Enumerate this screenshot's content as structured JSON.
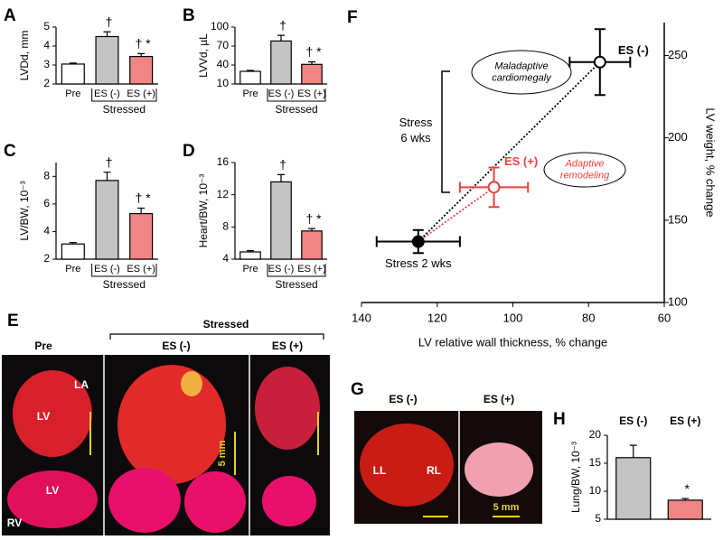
{
  "chart_data": [
    {
      "type": "bar",
      "panel": "A",
      "ylabel": "LVDd, mm",
      "categories": [
        "Pre",
        "ES (-)",
        "ES (+)"
      ],
      "values": [
        3.05,
        4.5,
        3.45
      ],
      "errors": [
        0.05,
        0.25,
        0.15
      ],
      "colors": [
        "#ffffff",
        "#c4c4c4",
        "#f08585"
      ],
      "annotations": [
        null,
        "†",
        "† *"
      ],
      "group_label": "Stressed",
      "ylim": [
        2,
        5
      ],
      "yticks": [
        2,
        3,
        4,
        5
      ]
    },
    {
      "type": "bar",
      "panel": "B",
      "ylabel": "LVVd, µL",
      "categories": [
        "Pre",
        "ES (-)",
        "ES (+)"
      ],
      "values": [
        30,
        78,
        41
      ],
      "errors": [
        1.5,
        9,
        4
      ],
      "colors": [
        "#ffffff",
        "#c4c4c4",
        "#f08585"
      ],
      "annotations": [
        null,
        "†",
        "† *"
      ],
      "group_label": "Stressed",
      "ylim": [
        10,
        100
      ],
      "yticks": [
        10,
        40,
        70,
        100
      ]
    },
    {
      "type": "bar",
      "panel": "C",
      "ylabel": "LV/BW, 10⁻³",
      "categories": [
        "Pre",
        "ES (-)",
        "ES (+)"
      ],
      "values": [
        3.1,
        7.7,
        5.3
      ],
      "errors": [
        0.1,
        0.6,
        0.4
      ],
      "colors": [
        "#ffffff",
        "#c4c4c4",
        "#f08585"
      ],
      "annotations": [
        null,
        "†",
        "† *"
      ],
      "group_label": "Stressed",
      "ylim": [
        2,
        9
      ],
      "yticks": [
        2,
        4,
        6,
        8
      ]
    },
    {
      "type": "bar",
      "panel": "D",
      "ylabel": "Heart/BW, 10⁻³",
      "categories": [
        "Pre",
        "ES (-)",
        "ES (+)"
      ],
      "values": [
        4.9,
        13.6,
        7.5
      ],
      "errors": [
        0.15,
        0.9,
        0.3
      ],
      "colors": [
        "#ffffff",
        "#c4c4c4",
        "#f08585"
      ],
      "annotations": [
        null,
        "†",
        "† *"
      ],
      "group_label": "Stressed",
      "ylim": [
        4,
        16
      ],
      "yticks": [
        4,
        8,
        12,
        16
      ]
    },
    {
      "type": "scatter",
      "panel": "F",
      "xlabel": "LV relative wall thickness, % change",
      "ylabel": "LV weight, % change",
      "series": [
        {
          "name": "Stress 2 wks",
          "color": "#000000",
          "marker": "filled",
          "x": [
            125
          ],
          "y": [
            137
          ],
          "xerr": [
            11
          ],
          "yerr": [
            7
          ]
        },
        {
          "name": "ES (+)",
          "color": "#e8423f",
          "marker": "open",
          "x": [
            105
          ],
          "y": [
            170
          ],
          "xerr": [
            9
          ],
          "yerr": [
            12
          ]
        },
        {
          "name": "ES (-)",
          "color": "#000000",
          "marker": "open",
          "x": [
            77
          ],
          "y": [
            246
          ],
          "xerr": [
            8
          ],
          "yerr": [
            20
          ]
        }
      ],
      "annotations": [
        {
          "lines": [
            "Maladaptive",
            "cardiomegaly"
          ]
        },
        {
          "lines": [
            "Adaptive",
            "remodeling"
          ]
        },
        {
          "lines": [
            "Stress",
            "6 wks"
          ]
        }
      ],
      "xlim": [
        140,
        60
      ],
      "xticks": [
        140,
        120,
        100,
        80,
        60
      ],
      "ylim": [
        100,
        270
      ],
      "yticks": [
        100,
        150,
        200,
        250
      ]
    },
    {
      "type": "bar",
      "panel": "H",
      "ylabel": "Lung/BW, 10⁻³",
      "categories": [
        "ES (-)",
        "ES (+)"
      ],
      "values": [
        16,
        8.4
      ],
      "errors": [
        2.2,
        0.3
      ],
      "colors": [
        "#c4c4c4",
        "#f08585"
      ],
      "annotations": [
        null,
        "*"
      ],
      "ylim": [
        5,
        20
      ],
      "yticks": [
        5,
        10,
        15,
        20
      ]
    }
  ],
  "photos": {
    "E": {
      "panel": "E",
      "group": "Stressed",
      "columns": [
        "Pre",
        "ES (-)",
        "ES (+)"
      ],
      "labels": [
        "LA",
        "LV",
        "LV",
        "RV"
      ],
      "scale": "5 mm"
    },
    "G": {
      "panel": "G",
      "columns": [
        "ES (-)",
        "ES (+)"
      ],
      "labels": [
        "LL",
        "RL"
      ],
      "scale": "5 mm"
    }
  }
}
